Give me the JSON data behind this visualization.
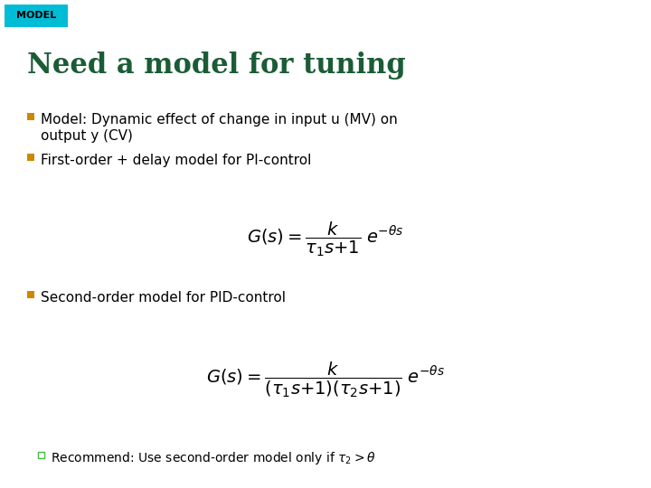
{
  "bg_color": "#ffffff",
  "tag_bg": "#00bcd4",
  "tag_text": "MODEL",
  "tag_text_color": "#000000",
  "tag_fontsize": 8,
  "title": "Need a model for tuning",
  "title_color": "#1a5c35",
  "title_fontsize": 22,
  "bullet_color": "#cc8800",
  "bullet1_line1": "Model: Dynamic effect of change in input u (MV) on",
  "bullet1_line2": "output y (CV)",
  "bullet2_text": "First-order + delay model for PI-control",
  "bullet3_text": "Second-order model for PID-control",
  "formula1": "$G(s) = \\dfrac{k}{\\tau_1 s{+}1}\\; e^{-\\theta s}$",
  "formula2": "$G(s) = \\dfrac{k}{(\\tau_1 s{+}1)(\\tau_2 s{+}1)}\\; e^{-\\theta s}$",
  "recommend_text": "Recommend: Use second-order model only if $\\tau_2{>}\\theta$",
  "body_fontsize": 11,
  "formula_fontsize": 14,
  "recommend_fontsize": 10,
  "recommend_bullet_color": "#44bb44"
}
